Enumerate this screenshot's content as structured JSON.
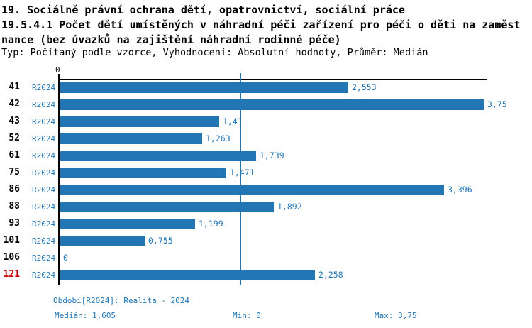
{
  "header": {
    "title_line1": "19. Sociálně právní ochrana dětí, opatrovnictví, sociální práce",
    "title_line2": "19.5.4.1 Počet dětí umístěných v náhradní péči zařízení pro péči o děti na zaměst",
    "title_line3": "nance (bez úvazků na zajištění náhradní rodinné péče)",
    "subtitle": "Typ: Počítaný podle vzorce, Vyhodnocení: Absolutní hodnoty, Průměr: Medián"
  },
  "chart_data": {
    "type": "bar",
    "orientation": "horizontal",
    "series_label": "R2024",
    "categories": [
      "41",
      "42",
      "43",
      "52",
      "61",
      "75",
      "86",
      "88",
      "93",
      "101",
      "106",
      "121"
    ],
    "values": [
      2.553,
      3.75,
      1.41,
      1.263,
      1.739,
      1.471,
      3.396,
      1.892,
      1.199,
      0.755,
      0,
      2.258
    ],
    "value_labels": [
      "2,553",
      "3,75",
      "1,41",
      "1,263",
      "1,739",
      "1,471",
      "3,396",
      "1,892",
      "1,199",
      "0,755",
      "0",
      "2,258"
    ],
    "highlighted_category": "121",
    "axis_origin_label": "0",
    "xlim": [
      0,
      3.75
    ],
    "median_line_value": 1.605,
    "grid": "off",
    "bar_color": "#2276b4",
    "median_line_color": "#2276b4",
    "highlight_color": "#cc0000"
  },
  "footer": {
    "period": "Období[R2024]: Realita - 2024",
    "median": "Medián: 1,605",
    "min": "Min: 0",
    "max": "Max: 3,75"
  }
}
